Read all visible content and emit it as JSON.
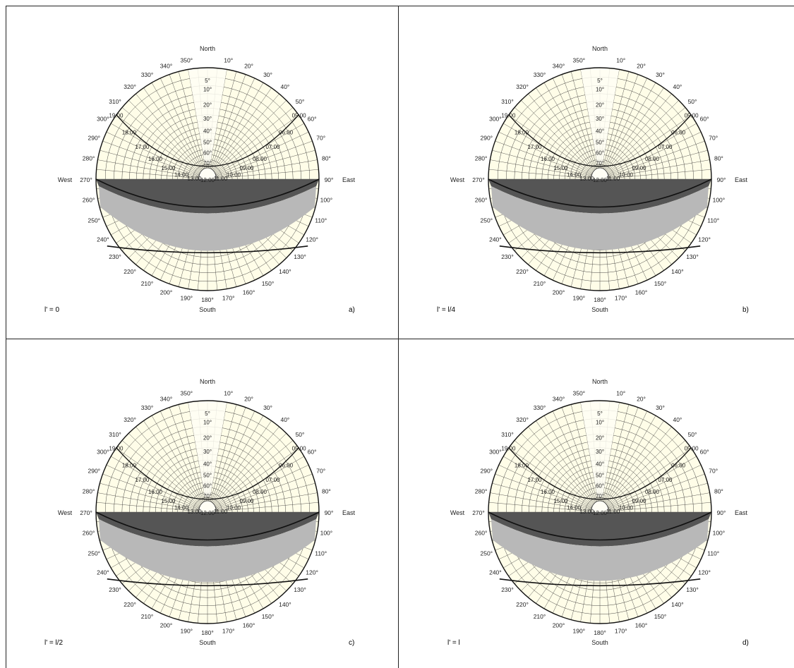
{
  "compass": {
    "north": "North",
    "south": "South",
    "east": "East",
    "west": "West"
  },
  "azimuth_labels": [
    "10°",
    "20°",
    "30°",
    "40°",
    "50°",
    "60°",
    "70°",
    "80°",
    "90°",
    "100°",
    "110°",
    "120°",
    "130°",
    "140°",
    "150°",
    "160°",
    "170°",
    "180°",
    "190°",
    "200°",
    "210°",
    "220°",
    "230°",
    "240°",
    "250°",
    "260°",
    "270°",
    "280°",
    "290°",
    "300°",
    "310°",
    "320°",
    "330°",
    "340°",
    "350°"
  ],
  "altitude_labels": [
    "5°",
    "10°",
    "20°",
    "30°",
    "40°",
    "50°",
    "60°",
    "70°"
  ],
  "hour_labels": [
    "05:00",
    "06:00",
    "07:00",
    "08:00",
    "09:00",
    "10:00",
    "11:00",
    "12:00",
    "13:00",
    "14:00",
    "15:00",
    "16:00",
    "17:00",
    "18:00",
    "19:00"
  ],
  "panels": [
    {
      "id": "a",
      "caption": "a)",
      "parameter": "l' = 0",
      "shade_depth": 0.45
    },
    {
      "id": "b",
      "caption": "b)",
      "parameter": "l' = l/4",
      "shade_depth": 0.42
    },
    {
      "id": "c",
      "caption": "c)",
      "parameter": "l' = l/2",
      "shade_depth": 0.38
    },
    {
      "id": "d",
      "caption": "d)",
      "parameter": "l' = l",
      "shade_depth": 0.33
    }
  ],
  "colors": {
    "background": "#fffde8",
    "grid": "#333333",
    "dark_shade": "#555555",
    "light_shade": "#b8b8b8",
    "sun_path": "#111111"
  }
}
